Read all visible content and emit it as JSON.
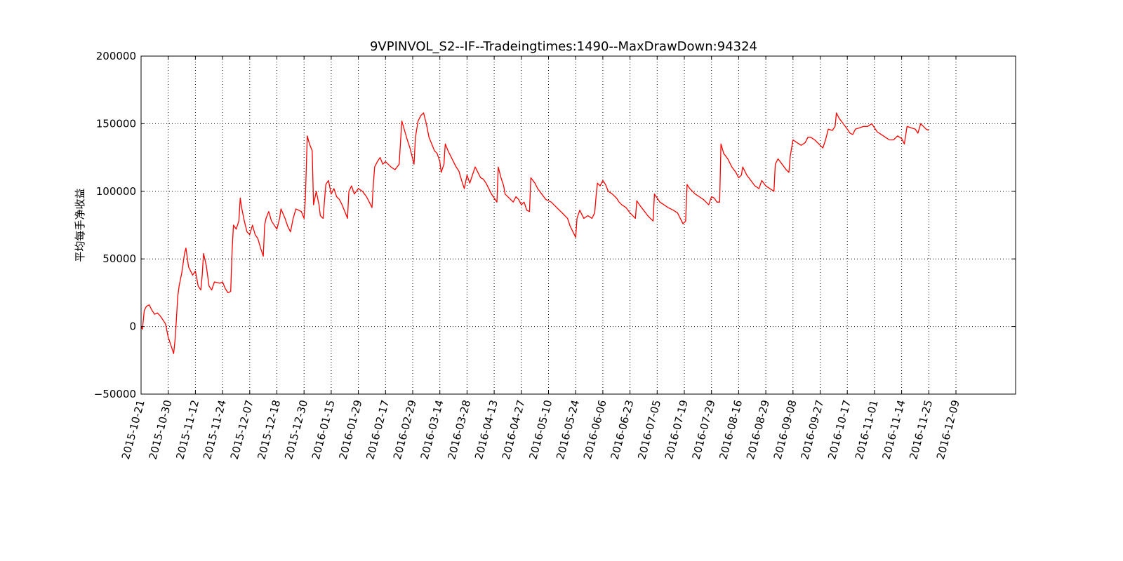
{
  "chart_data": {
    "type": "line",
    "title": "9VPINVOL_S2--IF--Tradeingtimes:1490--MaxDrawDown:94324",
    "ylabel": "平均每手净收益",
    "xlabel": "",
    "ylim": [
      -50000,
      200000
    ],
    "yticks": [
      -50000,
      0,
      50000,
      100000,
      150000,
      200000
    ],
    "ytick_labels": [
      "−50000",
      "0",
      "50000",
      "100000",
      "150000",
      "200000"
    ],
    "x_categories": [
      "2015-10-21",
      "2015-10-30",
      "2015-11-12",
      "2015-11-24",
      "2015-12-07",
      "2015-12-18",
      "2015-12-30",
      "2016-01-15",
      "2016-01-29",
      "2016-02-17",
      "2016-02-29",
      "2016-03-14",
      "2016-03-28",
      "2016-04-13",
      "2016-04-27",
      "2016-05-10",
      "2016-05-24",
      "2016-06-06",
      "2016-06-23",
      "2016-07-05",
      "2016-07-19",
      "2016-07-29",
      "2016-08-16",
      "2016-08-29",
      "2016-09-08",
      "2016-09-27",
      "2016-10-17",
      "2016-11-01",
      "2016-11-14",
      "2016-11-25",
      "2016-12-09"
    ],
    "x_axis_max_index": 32.2,
    "grid": true,
    "line_color": "#ff0000",
    "series": [
      {
        "points": [
          [
            0,
            0
          ],
          [
            0.05,
            -2000
          ],
          [
            0.12,
            12000
          ],
          [
            0.2,
            15000
          ],
          [
            0.3,
            16000
          ],
          [
            0.4,
            12000
          ],
          [
            0.5,
            9000
          ],
          [
            0.6,
            10000
          ],
          [
            0.7,
            8000
          ],
          [
            0.8,
            5000
          ],
          [
            0.9,
            2000
          ],
          [
            1.0,
            -8000
          ],
          [
            1.1,
            -14000
          ],
          [
            1.2,
            -20000
          ],
          [
            1.25,
            -10000
          ],
          [
            1.3,
            5000
          ],
          [
            1.35,
            22000
          ],
          [
            1.4,
            30000
          ],
          [
            1.5,
            40000
          ],
          [
            1.6,
            54000
          ],
          [
            1.65,
            58000
          ],
          [
            1.75,
            44000
          ],
          [
            1.9,
            38000
          ],
          [
            2.0,
            41000
          ],
          [
            2.1,
            30000
          ],
          [
            2.2,
            27000
          ],
          [
            2.25,
            38000
          ],
          [
            2.3,
            54000
          ],
          [
            2.4,
            45000
          ],
          [
            2.5,
            30000
          ],
          [
            2.6,
            27000
          ],
          [
            2.7,
            33000
          ],
          [
            2.9,
            32000
          ],
          [
            3.0,
            33000
          ],
          [
            3.1,
            28000
          ],
          [
            3.2,
            25000
          ],
          [
            3.3,
            26000
          ],
          [
            3.35,
            55000
          ],
          [
            3.4,
            75000
          ],
          [
            3.5,
            72000
          ],
          [
            3.6,
            78000
          ],
          [
            3.65,
            95000
          ],
          [
            3.7,
            88000
          ],
          [
            3.8,
            78000
          ],
          [
            3.9,
            70000
          ],
          [
            4.0,
            68000
          ],
          [
            4.1,
            75000
          ],
          [
            4.2,
            68000
          ],
          [
            4.3,
            65000
          ],
          [
            4.4,
            58000
          ],
          [
            4.5,
            52000
          ],
          [
            4.55,
            75000
          ],
          [
            4.6,
            80000
          ],
          [
            4.7,
            85000
          ],
          [
            4.8,
            78000
          ],
          [
            5.0,
            72000
          ],
          [
            5.1,
            80000
          ],
          [
            5.15,
            87000
          ],
          [
            5.3,
            80000
          ],
          [
            5.4,
            74000
          ],
          [
            5.5,
            70000
          ],
          [
            5.6,
            80000
          ],
          [
            5.7,
            87000
          ],
          [
            5.8,
            86000
          ],
          [
            5.9,
            85000
          ],
          [
            6.0,
            80000
          ],
          [
            6.05,
            95000
          ],
          [
            6.12,
            141000
          ],
          [
            6.2,
            135000
          ],
          [
            6.3,
            130000
          ],
          [
            6.35,
            90000
          ],
          [
            6.45,
            100000
          ],
          [
            6.55,
            90000
          ],
          [
            6.6,
            82000
          ],
          [
            6.7,
            80000
          ],
          [
            6.8,
            105000
          ],
          [
            6.9,
            108000
          ],
          [
            7.0,
            98000
          ],
          [
            7.1,
            102000
          ],
          [
            7.2,
            96000
          ],
          [
            7.3,
            94000
          ],
          [
            7.4,
            90000
          ],
          [
            7.5,
            85000
          ],
          [
            7.6,
            80000
          ],
          [
            7.65,
            100000
          ],
          [
            7.75,
            104000
          ],
          [
            7.85,
            98000
          ],
          [
            8.0,
            102000
          ],
          [
            8.15,
            100000
          ],
          [
            8.3,
            96000
          ],
          [
            8.4,
            92000
          ],
          [
            8.5,
            88000
          ],
          [
            8.55,
            105000
          ],
          [
            8.6,
            118000
          ],
          [
            8.7,
            122000
          ],
          [
            8.8,
            125000
          ],
          [
            8.9,
            120000
          ],
          [
            9.0,
            122000
          ],
          [
            9.2,
            118000
          ],
          [
            9.35,
            116000
          ],
          [
            9.5,
            120000
          ],
          [
            9.6,
            152000
          ],
          [
            9.7,
            145000
          ],
          [
            9.8,
            138000
          ],
          [
            9.9,
            132000
          ],
          [
            10.0,
            124000
          ],
          [
            10.05,
            120000
          ],
          [
            10.1,
            140000
          ],
          [
            10.2,
            152000
          ],
          [
            10.3,
            156000
          ],
          [
            10.4,
            158000
          ],
          [
            10.5,
            150000
          ],
          [
            10.6,
            140000
          ],
          [
            10.7,
            135000
          ],
          [
            10.8,
            130000
          ],
          [
            10.9,
            128000
          ],
          [
            11.0,
            122000
          ],
          [
            11.05,
            114000
          ],
          [
            11.15,
            120000
          ],
          [
            11.2,
            135000
          ],
          [
            11.3,
            130000
          ],
          [
            11.4,
            126000
          ],
          [
            11.5,
            122000
          ],
          [
            11.6,
            118000
          ],
          [
            11.7,
            115000
          ],
          [
            11.8,
            108000
          ],
          [
            11.9,
            102000
          ],
          [
            12.0,
            112000
          ],
          [
            12.1,
            106000
          ],
          [
            12.2,
            112000
          ],
          [
            12.3,
            118000
          ],
          [
            12.4,
            114000
          ],
          [
            12.5,
            110000
          ],
          [
            12.6,
            109000
          ],
          [
            12.7,
            106000
          ],
          [
            12.8,
            102000
          ],
          [
            12.9,
            98000
          ],
          [
            13.0,
            95000
          ],
          [
            13.1,
            92000
          ],
          [
            13.15,
            118000
          ],
          [
            13.25,
            110000
          ],
          [
            13.35,
            104000
          ],
          [
            13.4,
            98000
          ],
          [
            13.55,
            95000
          ],
          [
            13.7,
            92000
          ],
          [
            13.8,
            96000
          ],
          [
            13.9,
            94000
          ],
          [
            14.0,
            90000
          ],
          [
            14.1,
            92000
          ],
          [
            14.2,
            86000
          ],
          [
            14.3,
            85000
          ],
          [
            14.35,
            110000
          ],
          [
            14.5,
            106000
          ],
          [
            14.6,
            102000
          ],
          [
            14.75,
            98000
          ],
          [
            14.9,
            94000
          ],
          [
            15.1,
            92000
          ],
          [
            15.3,
            88000
          ],
          [
            15.5,
            84000
          ],
          [
            15.7,
            80000
          ],
          [
            15.8,
            74000
          ],
          [
            15.9,
            70000
          ],
          [
            16.0,
            66000
          ],
          [
            16.05,
            80000
          ],
          [
            16.15,
            86000
          ],
          [
            16.3,
            80000
          ],
          [
            16.45,
            82000
          ],
          [
            16.6,
            80000
          ],
          [
            16.7,
            84000
          ],
          [
            16.75,
            96000
          ],
          [
            16.8,
            106000
          ],
          [
            16.9,
            104000
          ],
          [
            17.0,
            108000
          ],
          [
            17.1,
            105000
          ],
          [
            17.2,
            100000
          ],
          [
            17.35,
            98000
          ],
          [
            17.5,
            95000
          ],
          [
            17.6,
            92000
          ],
          [
            17.7,
            90000
          ],
          [
            17.85,
            88000
          ],
          [
            18.0,
            84000
          ],
          [
            18.1,
            82000
          ],
          [
            18.2,
            80000
          ],
          [
            18.25,
            93000
          ],
          [
            18.35,
            90000
          ],
          [
            18.5,
            86000
          ],
          [
            18.65,
            82000
          ],
          [
            18.75,
            80000
          ],
          [
            18.85,
            78000
          ],
          [
            18.9,
            98000
          ],
          [
            19.0,
            95000
          ],
          [
            19.1,
            92000
          ],
          [
            19.25,
            90000
          ],
          [
            19.4,
            88000
          ],
          [
            19.6,
            86000
          ],
          [
            19.75,
            84000
          ],
          [
            19.85,
            80000
          ],
          [
            19.95,
            76000
          ],
          [
            20.05,
            78000
          ],
          [
            20.1,
            105000
          ],
          [
            20.2,
            102000
          ],
          [
            20.3,
            100000
          ],
          [
            20.4,
            98000
          ],
          [
            20.55,
            96000
          ],
          [
            20.7,
            94000
          ],
          [
            20.8,
            92000
          ],
          [
            20.9,
            90000
          ],
          [
            21.0,
            96000
          ],
          [
            21.1,
            95000
          ],
          [
            21.2,
            92000
          ],
          [
            21.3,
            92000
          ],
          [
            21.35,
            135000
          ],
          [
            21.45,
            128000
          ],
          [
            21.6,
            124000
          ],
          [
            21.75,
            118000
          ],
          [
            21.9,
            114000
          ],
          [
            22.0,
            110000
          ],
          [
            22.1,
            112000
          ],
          [
            22.15,
            118000
          ],
          [
            22.3,
            112000
          ],
          [
            22.45,
            108000
          ],
          [
            22.6,
            104000
          ],
          [
            22.75,
            102000
          ],
          [
            22.85,
            108000
          ],
          [
            23.0,
            104000
          ],
          [
            23.15,
            102000
          ],
          [
            23.3,
            100000
          ],
          [
            23.35,
            120000
          ],
          [
            23.45,
            124000
          ],
          [
            23.6,
            120000
          ],
          [
            23.75,
            116000
          ],
          [
            23.85,
            114000
          ],
          [
            23.9,
            126000
          ],
          [
            24.0,
            138000
          ],
          [
            24.15,
            136000
          ],
          [
            24.3,
            134000
          ],
          [
            24.45,
            136000
          ],
          [
            24.55,
            140000
          ],
          [
            24.65,
            140000
          ],
          [
            24.8,
            138000
          ],
          [
            24.95,
            135000
          ],
          [
            25.1,
            132000
          ],
          [
            25.2,
            138000
          ],
          [
            25.3,
            146000
          ],
          [
            25.45,
            145000
          ],
          [
            25.55,
            148000
          ],
          [
            25.6,
            158000
          ],
          [
            25.7,
            154000
          ],
          [
            25.85,
            150000
          ],
          [
            26.0,
            146000
          ],
          [
            26.1,
            143000
          ],
          [
            26.2,
            142000
          ],
          [
            26.3,
            146000
          ],
          [
            26.45,
            147000
          ],
          [
            26.6,
            148000
          ],
          [
            26.75,
            148000
          ],
          [
            26.9,
            150000
          ],
          [
            27.0,
            147000
          ],
          [
            27.1,
            144000
          ],
          [
            27.25,
            142000
          ],
          [
            27.4,
            140000
          ],
          [
            27.55,
            138000
          ],
          [
            27.7,
            138000
          ],
          [
            27.85,
            141000
          ],
          [
            28.0,
            139000
          ],
          [
            28.1,
            135000
          ],
          [
            28.2,
            148000
          ],
          [
            28.35,
            147000
          ],
          [
            28.5,
            146000
          ],
          [
            28.6,
            143000
          ],
          [
            28.7,
            150000
          ],
          [
            28.8,
            148000
          ],
          [
            28.9,
            146000
          ],
          [
            29.0,
            145000
          ]
        ]
      }
    ]
  }
}
